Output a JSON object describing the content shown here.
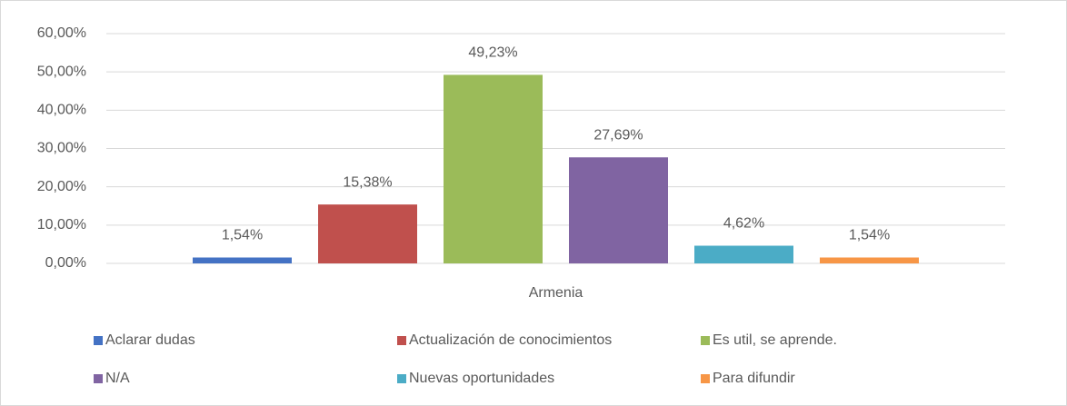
{
  "chart_data": {
    "type": "bar",
    "categories": [
      "Armenia"
    ],
    "series": [
      {
        "name": "Aclarar dudas",
        "color": "#4472c4",
        "values": [
          1.54
        ],
        "value_labels": [
          "1,54%"
        ]
      },
      {
        "name": "Actualización de conocimientos",
        "color": "#c0504d",
        "values": [
          15.38
        ],
        "value_labels": [
          "15,38%"
        ]
      },
      {
        "name": "Es util, se aprende.",
        "color": "#9bbb59",
        "values": [
          49.23
        ],
        "value_labels": [
          "49,23%"
        ]
      },
      {
        "name": "N/A",
        "color": "#8064a2",
        "values": [
          27.69
        ],
        "value_labels": [
          "27,69%"
        ]
      },
      {
        "name": "Nuevas oportunidades",
        "color": "#4bacc6",
        "values": [
          4.62
        ],
        "value_labels": [
          "4,62%"
        ]
      },
      {
        "name": "Para difundir",
        "color": "#f79646",
        "values": [
          1.54
        ],
        "value_labels": [
          "1,54%"
        ]
      }
    ],
    "ylim": [
      0,
      60
    ],
    "yticks": [
      {
        "value": 0,
        "label": "0,00%"
      },
      {
        "value": 10,
        "label": "10,00%"
      },
      {
        "value": 20,
        "label": "20,00%"
      },
      {
        "value": 30,
        "label": "30,00%"
      },
      {
        "value": 40,
        "label": "40,00%"
      },
      {
        "value": 50,
        "label": "50,00%"
      },
      {
        "value": 60,
        "label": "60,00%"
      }
    ],
    "grid": true,
    "legend": "bottom"
  }
}
